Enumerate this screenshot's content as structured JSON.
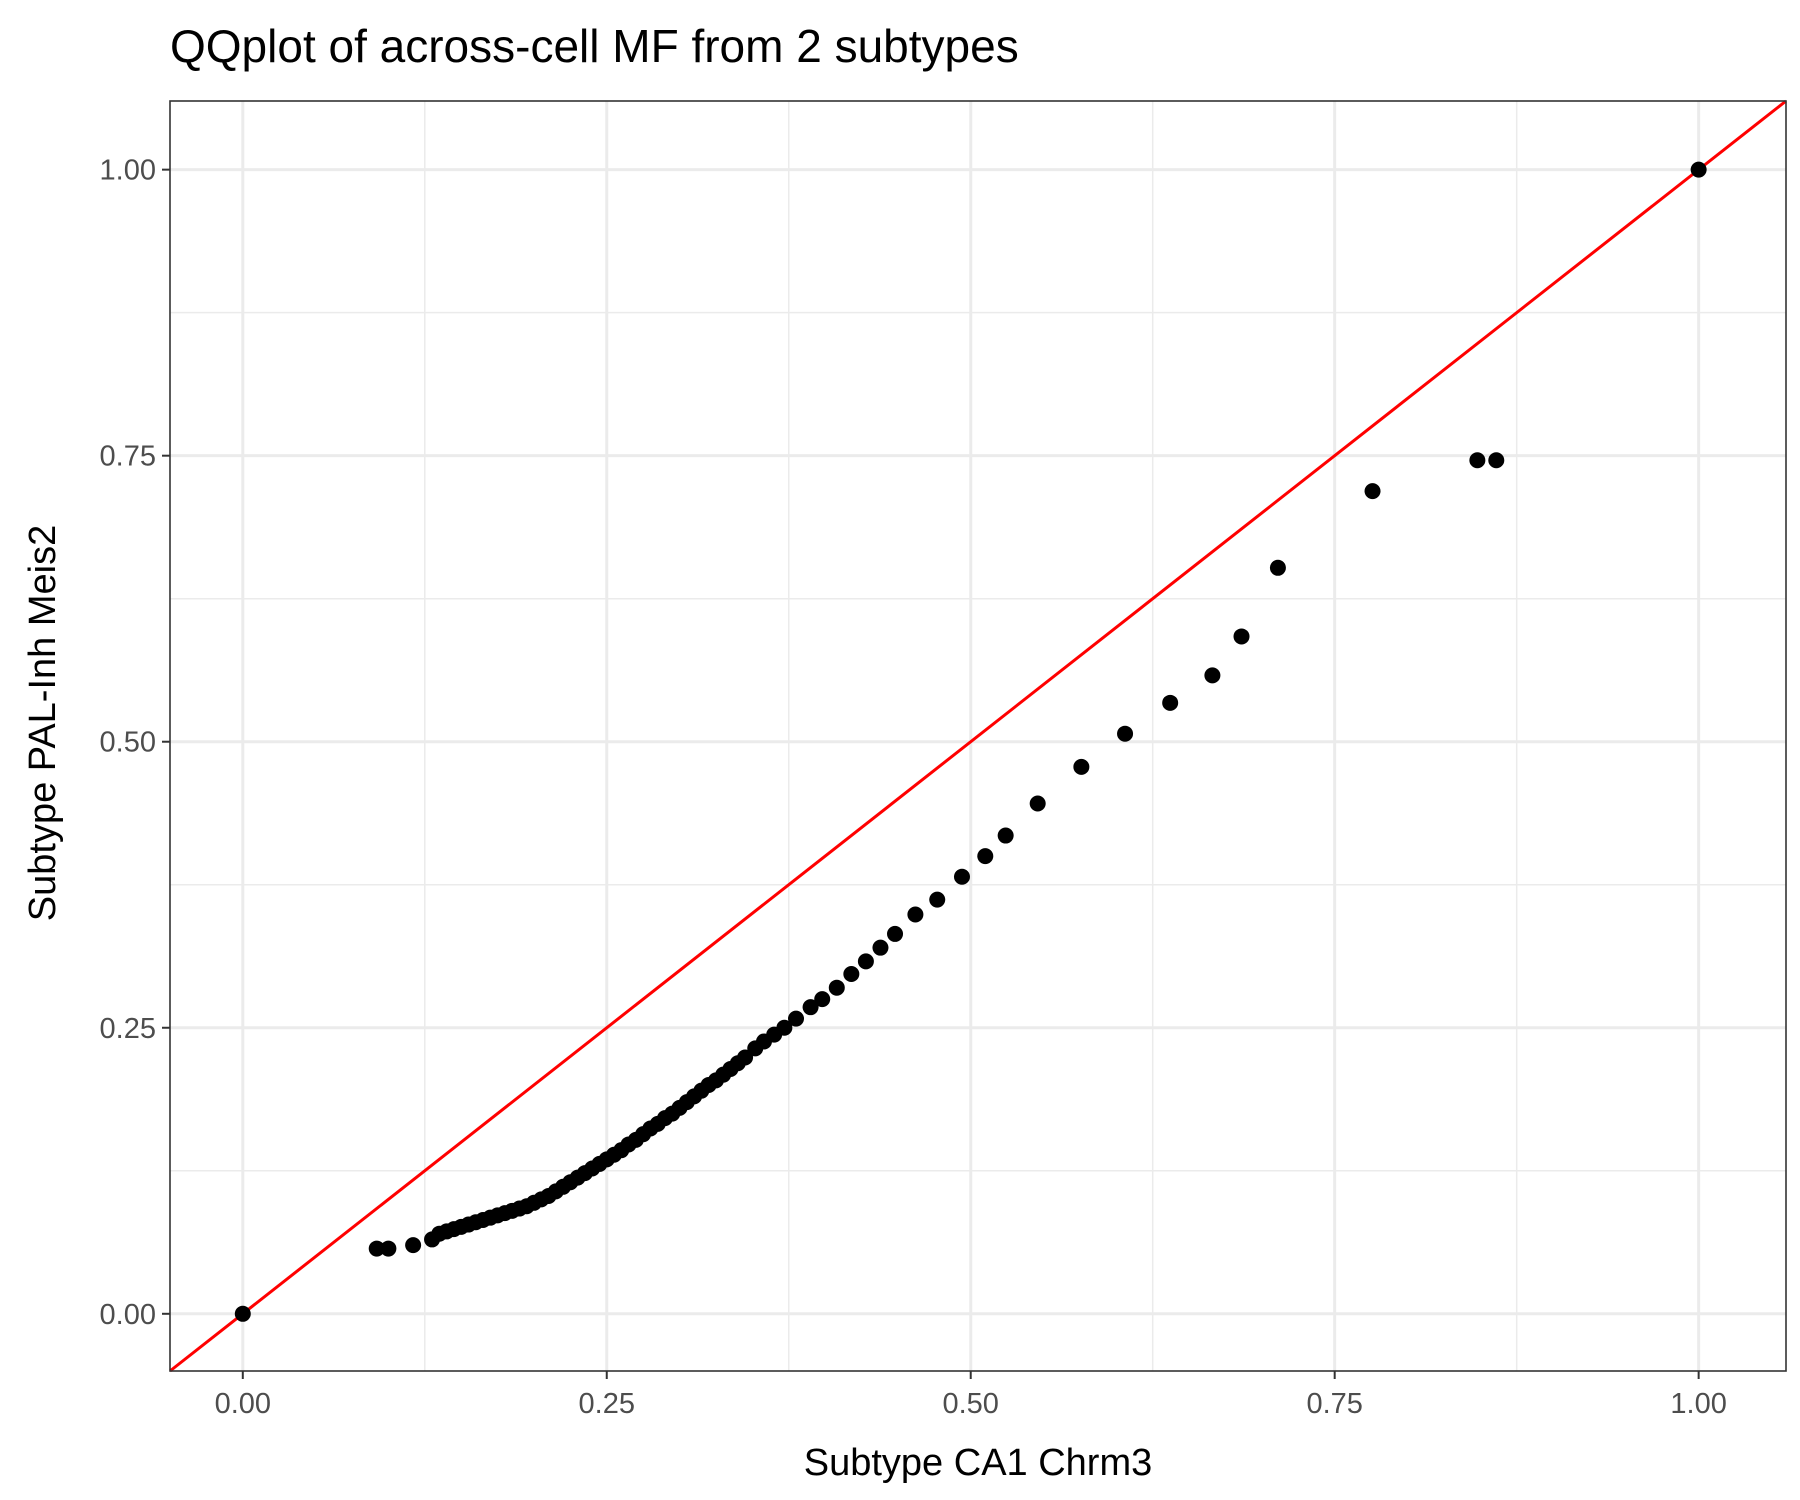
{
  "chart_data": {
    "type": "scatter",
    "title": "QQplot of across-cell MF from 2 subtypes",
    "xlabel": "Subtype CA1 Chrm3",
    "ylabel": "Subtype PAL-Inh Meis2",
    "xlim": [
      -0.05,
      1.06
    ],
    "ylim": [
      -0.05,
      1.06
    ],
    "x_ticks": [
      "0.00",
      "0.25",
      "0.50",
      "0.75",
      "1.00"
    ],
    "y_ticks": [
      "0.00",
      "0.25",
      "0.50",
      "0.75",
      "1.00"
    ],
    "x_tick_values": [
      0,
      0.25,
      0.5,
      0.75,
      1
    ],
    "y_tick_values": [
      0,
      0.25,
      0.5,
      0.75,
      1
    ],
    "grid": true,
    "point_color": "#000000",
    "reference_line": {
      "slope": 1,
      "intercept": 0,
      "color": "#ff0000"
    },
    "points": [
      [
        0.0,
        0.0
      ],
      [
        0.092,
        0.057
      ],
      [
        0.1,
        0.057
      ],
      [
        0.117,
        0.06
      ],
      [
        0.13,
        0.065
      ],
      [
        0.135,
        0.07
      ],
      [
        0.14,
        0.072
      ],
      [
        0.145,
        0.074
      ],
      [
        0.15,
        0.076
      ],
      [
        0.155,
        0.078
      ],
      [
        0.16,
        0.08
      ],
      [
        0.165,
        0.082
      ],
      [
        0.17,
        0.084
      ],
      [
        0.175,
        0.086
      ],
      [
        0.18,
        0.088
      ],
      [
        0.185,
        0.09
      ],
      [
        0.19,
        0.092
      ],
      [
        0.195,
        0.094
      ],
      [
        0.2,
        0.097
      ],
      [
        0.205,
        0.1
      ],
      [
        0.21,
        0.103
      ],
      [
        0.215,
        0.107
      ],
      [
        0.22,
        0.111
      ],
      [
        0.225,
        0.115
      ],
      [
        0.23,
        0.119
      ],
      [
        0.235,
        0.123
      ],
      [
        0.24,
        0.127
      ],
      [
        0.245,
        0.131
      ],
      [
        0.25,
        0.135
      ],
      [
        0.255,
        0.139
      ],
      [
        0.26,
        0.143
      ],
      [
        0.265,
        0.148
      ],
      [
        0.27,
        0.152
      ],
      [
        0.275,
        0.157
      ],
      [
        0.28,
        0.162
      ],
      [
        0.285,
        0.166
      ],
      [
        0.29,
        0.171
      ],
      [
        0.295,
        0.175
      ],
      [
        0.3,
        0.18
      ],
      [
        0.305,
        0.185
      ],
      [
        0.31,
        0.19
      ],
      [
        0.315,
        0.195
      ],
      [
        0.32,
        0.2
      ],
      [
        0.325,
        0.204
      ],
      [
        0.33,
        0.209
      ],
      [
        0.335,
        0.214
      ],
      [
        0.34,
        0.219
      ],
      [
        0.345,
        0.224
      ],
      [
        0.352,
        0.232
      ],
      [
        0.358,
        0.238
      ],
      [
        0.365,
        0.244
      ],
      [
        0.372,
        0.25
      ],
      [
        0.38,
        0.258
      ],
      [
        0.39,
        0.268
      ],
      [
        0.398,
        0.275
      ],
      [
        0.408,
        0.285
      ],
      [
        0.418,
        0.297
      ],
      [
        0.428,
        0.308
      ],
      [
        0.438,
        0.32
      ],
      [
        0.448,
        0.332
      ],
      [
        0.462,
        0.349
      ],
      [
        0.477,
        0.362
      ],
      [
        0.494,
        0.382
      ],
      [
        0.51,
        0.4
      ],
      [
        0.524,
        0.418
      ],
      [
        0.546,
        0.446
      ],
      [
        0.576,
        0.478
      ],
      [
        0.606,
        0.507
      ],
      [
        0.637,
        0.534
      ],
      [
        0.666,
        0.558
      ],
      [
        0.686,
        0.592
      ],
      [
        0.711,
        0.652
      ],
      [
        0.776,
        0.719
      ],
      [
        0.848,
        0.746
      ],
      [
        0.861,
        0.746
      ],
      [
        1.0,
        1.0
      ]
    ]
  }
}
